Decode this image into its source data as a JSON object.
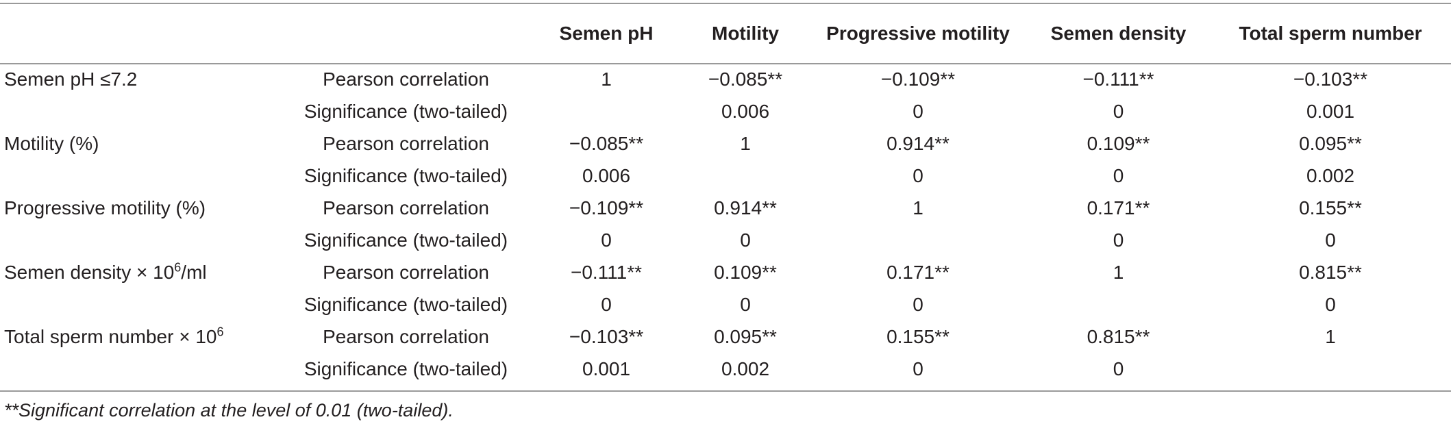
{
  "table": {
    "headers": [
      "",
      "",
      "Semen pH",
      "Motility",
      "Progressive motility",
      "Semen density",
      "Total sperm number"
    ],
    "rows": [
      {
        "label": {
          "pre": "Semen pH ≤7.2",
          "sup": "",
          "post": ""
        },
        "stat": "Pearson correlation",
        "values": [
          "1",
          "−0.085**",
          "−0.109**",
          "−0.111**",
          "−0.103**"
        ]
      },
      {
        "label": {
          "pre": "",
          "sup": "",
          "post": ""
        },
        "stat": "Significance (two-tailed)",
        "values": [
          "",
          "0.006",
          "0",
          "0",
          "0.001"
        ]
      },
      {
        "label": {
          "pre": "Motility (%)",
          "sup": "",
          "post": ""
        },
        "stat": "Pearson correlation",
        "values": [
          "−0.085**",
          "1",
          "0.914**",
          "0.109**",
          "0.095**"
        ]
      },
      {
        "label": {
          "pre": "",
          "sup": "",
          "post": ""
        },
        "stat": "Significance (two-tailed)",
        "values": [
          "0.006",
          "",
          "0",
          "0",
          "0.002"
        ]
      },
      {
        "label": {
          "pre": "Progressive motility (%)",
          "sup": "",
          "post": ""
        },
        "stat": "Pearson correlation",
        "values": [
          "−0.109**",
          "0.914**",
          "1",
          "0.171**",
          "0.155**"
        ]
      },
      {
        "label": {
          "pre": "",
          "sup": "",
          "post": ""
        },
        "stat": "Significance (two-tailed)",
        "values": [
          "0",
          "0",
          "",
          "0",
          "0"
        ]
      },
      {
        "label": {
          "pre": "Semen density × 10",
          "sup": "6",
          "post": "/ml"
        },
        "stat": "Pearson correlation",
        "values": [
          "−0.111**",
          "0.109**",
          "0.171**",
          "1",
          "0.815**"
        ]
      },
      {
        "label": {
          "pre": "",
          "sup": "",
          "post": ""
        },
        "stat": "Significance (two-tailed)",
        "values": [
          "0",
          "0",
          "0",
          "",
          "0"
        ]
      },
      {
        "label": {
          "pre": "Total sperm number × 10",
          "sup": "6",
          "post": ""
        },
        "stat": "Pearson correlation",
        "values": [
          "−0.103**",
          "0.095**",
          "0.155**",
          "0.815**",
          "1"
        ]
      },
      {
        "label": {
          "pre": "",
          "sup": "",
          "post": ""
        },
        "stat": "Significance (two-tailed)",
        "values": [
          "0.001",
          "0.002",
          "0",
          "0",
          ""
        ]
      }
    ],
    "footnote": "**Significant correlation at the level of 0.01 (two-tailed)."
  }
}
